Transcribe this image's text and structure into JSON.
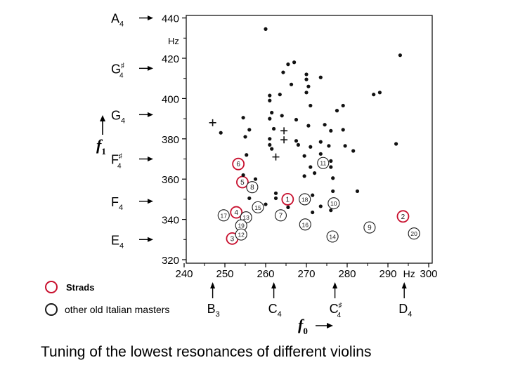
{
  "chart_data": {
    "type": "scatter",
    "x_unit": "Hz",
    "y_unit": "Hz",
    "xlim": [
      240,
      300
    ],
    "ylim": [
      320,
      440
    ],
    "x_ticks": [
      "240",
      "250",
      "260",
      "270",
      "280",
      "290",
      "300"
    ],
    "y_ticks": [
      "320",
      "340",
      "360",
      "380",
      "400",
      "420",
      "440"
    ],
    "y_axis_symbol": "f",
    "y_axis_subscript": "1",
    "x_axis_symbol": "f",
    "x_axis_subscript": "0",
    "y_notes": [
      {
        "name": "E",
        "sub": "4",
        "sharp": false,
        "freq": 330
      },
      {
        "name": "F",
        "sub": "4",
        "sharp": false,
        "freq": 349
      },
      {
        "name": "F",
        "sub": "4",
        "sharp": true,
        "freq": 370
      },
      {
        "name": "G",
        "sub": "4",
        "sharp": false,
        "freq": 392
      },
      {
        "name": "G",
        "sub": "4",
        "sharp": true,
        "freq": 415
      },
      {
        "name": "A",
        "sub": "4",
        "sharp": false,
        "freq": 440
      }
    ],
    "x_notes": [
      {
        "name": "B",
        "sub": "3",
        "sharp": false,
        "freq": 247
      },
      {
        "name": "C",
        "sub": "4",
        "sharp": false,
        "freq": 262
      },
      {
        "name": "C",
        "sub": "4",
        "sharp": true,
        "freq": 277
      },
      {
        "name": "D",
        "sub": "4",
        "sharp": false,
        "freq": 294
      }
    ],
    "series": [
      {
        "name": "Strads",
        "color": "#c8102e",
        "points": [
          {
            "label": "6",
            "x": 253.3,
            "y": 367.5
          },
          {
            "label": "5",
            "x": 254.3,
            "y": 358.5
          },
          {
            "label": "4",
            "x": 252.8,
            "y": 343.5
          },
          {
            "label": "1",
            "x": 265.4,
            "y": 350.0
          },
          {
            "label": "2",
            "x": 293.7,
            "y": 341.5
          },
          {
            "label": "3",
            "x": 251.8,
            "y": 330.5
          }
        ]
      },
      {
        "name": "other old Italian masters",
        "color": "#1a1a1a",
        "points": [
          {
            "label": "8",
            "x": 256.7,
            "y": 356.0
          },
          {
            "label": "11",
            "x": 274.1,
            "y": 368.0
          },
          {
            "label": "18",
            "x": 269.6,
            "y": 350.0
          },
          {
            "label": "10",
            "x": 276.7,
            "y": 348.0
          },
          {
            "label": "17",
            "x": 249.7,
            "y": 342.0
          },
          {
            "label": "15",
            "x": 258.1,
            "y": 346.0
          },
          {
            "label": "13",
            "x": 255.2,
            "y": 341.0
          },
          {
            "label": "7",
            "x": 263.7,
            "y": 342.0
          },
          {
            "label": "16",
            "x": 269.7,
            "y": 337.5
          },
          {
            "label": "9",
            "x": 285.5,
            "y": 336.0
          },
          {
            "label": "19",
            "x": 254.0,
            "y": 337.0
          },
          {
            "label": "12",
            "x": 254.0,
            "y": 332.5
          },
          {
            "label": "14",
            "x": 276.4,
            "y": 331.5
          },
          {
            "label": "20",
            "x": 296.4,
            "y": 333.0
          }
        ]
      },
      {
        "name": "",
        "marker": "dot",
        "points": [
          {
            "x": 260.0,
            "y": 434.5
          },
          {
            "x": 265.5,
            "y": 417.0
          },
          {
            "x": 267.0,
            "y": 418.0
          },
          {
            "x": 264.3,
            "y": 413.0
          },
          {
            "x": 270.0,
            "y": 412.0
          },
          {
            "x": 273.5,
            "y": 410.5
          },
          {
            "x": 293.0,
            "y": 421.5
          },
          {
            "x": 270.0,
            "y": 409.5
          },
          {
            "x": 266.3,
            "y": 407.0
          },
          {
            "x": 270.5,
            "y": 406.0
          },
          {
            "x": 270.0,
            "y": 403.0
          },
          {
            "x": 263.5,
            "y": 402.0
          },
          {
            "x": 261.0,
            "y": 401.5
          },
          {
            "x": 261.0,
            "y": 399.0
          },
          {
            "x": 271.0,
            "y": 396.5
          },
          {
            "x": 277.5,
            "y": 394.0
          },
          {
            "x": 279.0,
            "y": 396.5
          },
          {
            "x": 288.0,
            "y": 403.0
          },
          {
            "x": 286.5,
            "y": 402.0
          },
          {
            "x": 254.5,
            "y": 390.5
          },
          {
            "x": 261.5,
            "y": 393.0
          },
          {
            "x": 264.0,
            "y": 391.5
          },
          {
            "x": 261.0,
            "y": 390.0
          },
          {
            "x": 267.5,
            "y": 389.5
          },
          {
            "x": 270.5,
            "y": 386.5
          },
          {
            "x": 274.5,
            "y": 387.0
          },
          {
            "x": 276.0,
            "y": 384.0
          },
          {
            "x": 279.0,
            "y": 384.5
          },
          {
            "x": 249.0,
            "y": 383.0
          },
          {
            "x": 256.0,
            "y": 384.5
          },
          {
            "x": 262.0,
            "y": 385.0
          },
          {
            "x": 267.5,
            "y": 379.0
          },
          {
            "x": 268.0,
            "y": 377.0
          },
          {
            "x": 271.0,
            "y": 376.0
          },
          {
            "x": 273.5,
            "y": 378.5
          },
          {
            "x": 275.5,
            "y": 376.5
          },
          {
            "x": 279.5,
            "y": 376.5
          },
          {
            "x": 281.5,
            "y": 374.0
          },
          {
            "x": 292.0,
            "y": 377.5
          },
          {
            "x": 255.0,
            "y": 381.0
          },
          {
            "x": 255.3,
            "y": 372.0
          },
          {
            "x": 261.0,
            "y": 380.0
          },
          {
            "x": 261.0,
            "y": 377.0
          },
          {
            "x": 261.5,
            "y": 375.0
          },
          {
            "x": 273.5,
            "y": 372.5
          },
          {
            "x": 269.5,
            "y": 371.5
          },
          {
            "x": 276.0,
            "y": 369.0
          },
          {
            "x": 276.0,
            "y": 366.0
          },
          {
            "x": 271.0,
            "y": 366.0
          },
          {
            "x": 272.0,
            "y": 363.0
          },
          {
            "x": 254.5,
            "y": 362.0
          },
          {
            "x": 257.5,
            "y": 360.0
          },
          {
            "x": 269.5,
            "y": 361.5
          },
          {
            "x": 276.5,
            "y": 360.5
          },
          {
            "x": 282.5,
            "y": 354.0
          },
          {
            "x": 262.5,
            "y": 353.0
          },
          {
            "x": 271.5,
            "y": 352.0
          },
          {
            "x": 276.5,
            "y": 354.0
          },
          {
            "x": 256.0,
            "y": 350.5
          },
          {
            "x": 260.0,
            "y": 347.5
          },
          {
            "x": 265.5,
            "y": 346.0
          },
          {
            "x": 273.5,
            "y": 346.5
          },
          {
            "x": 276.0,
            "y": 344.5
          },
          {
            "x": 271.5,
            "y": 343.5
          },
          {
            "x": 262.5,
            "y": 350.5
          }
        ]
      },
      {
        "name": "",
        "marker": "plus",
        "points": [
          {
            "x": 247.0,
            "y": 388.0
          },
          {
            "x": 264.5,
            "y": 384.0
          },
          {
            "x": 264.5,
            "y": 379.5
          },
          {
            "x": 262.5,
            "y": 371.0
          }
        ]
      }
    ]
  },
  "legend": {
    "strad_label": "Strads",
    "other_label": "other old Italian masters",
    "strad_color": "#c8102e",
    "other_color": "#1a1a1a"
  },
  "caption": "Tuning of the lowest resonances of different violins"
}
